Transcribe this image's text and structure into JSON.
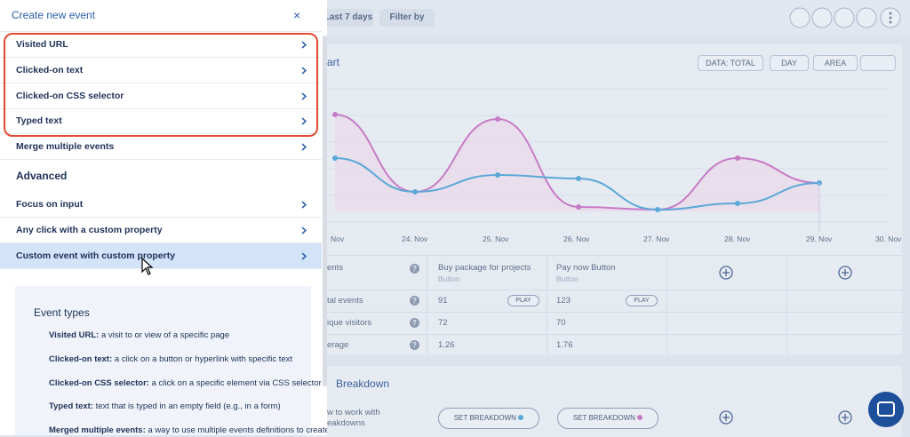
{
  "toolbar": {
    "date_range": "Last 7 days",
    "filter": "Filter by"
  },
  "panel": {
    "title": "Create new event",
    "close": "×",
    "items": [
      "Visited URL",
      "Clicked-on text",
      "Clicked-on CSS selector",
      "Typed text",
      "Merge multiple events"
    ],
    "advanced_title": "Advanced",
    "advanced_items": [
      "Focus on input",
      "Any click with a custom property",
      "Custom event with custom property"
    ],
    "info": {
      "title": "Event types",
      "entries": [
        {
          "term": "Visited URL:",
          "text": "a visit to or view of a specific page"
        },
        {
          "term": "Clicked-on text:",
          "text": "a click on a button or hyperlink with specific text"
        },
        {
          "term": "Clicked-on CSS selector:",
          "text": "a click on a specific element via CSS selector"
        },
        {
          "term": "Typed text:",
          "text": "text that is typed in an empty field (e.g., in a form)"
        },
        {
          "term": "Merged multiple events:",
          "text": "a way to use multiple events definitions to create a"
        }
      ]
    }
  },
  "chart": {
    "title": "art",
    "controls": [
      "DATA: TOTAL",
      "DAY",
      "AREA"
    ],
    "x_labels": [
      "Nov",
      "24. Nov",
      "25. Nov",
      "26. Nov",
      "27. Nov",
      "28. Nov",
      "29. Nov",
      "30. Nov"
    ]
  },
  "table": {
    "help": "?",
    "header": {
      "label": "ents",
      "columns": [
        {
          "name": "Buy package for projects",
          "type": "Button"
        },
        {
          "name": "Pay now Button",
          "type": "Button"
        }
      ]
    },
    "rows": [
      {
        "label": "tal events",
        "values": [
          91,
          123
        ],
        "action": "PLAY"
      },
      {
        "label": "ique visitors",
        "values": [
          72,
          70
        ]
      },
      {
        "label": "erage",
        "values": [
          1.26,
          1.76
        ]
      }
    ]
  },
  "breakdown": {
    "title": "Breakdown",
    "label_lines": [
      "w to work with",
      "eakdowns"
    ],
    "button": "SET BREAKDOWN"
  }
}
